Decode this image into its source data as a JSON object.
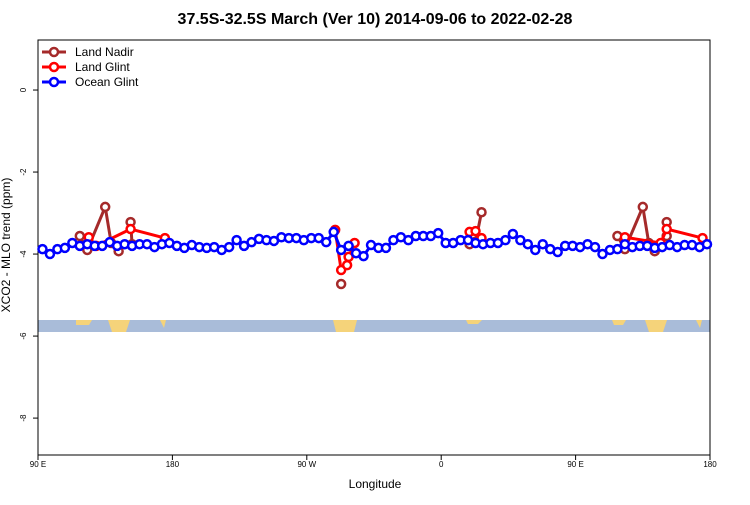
{
  "chart_data": {
    "type": "line",
    "title": "37.5S-32.5S March (Ver 10)   2014-09-06 to 2022-02-28",
    "x_label": "Longitude",
    "y_label": "XCO2 - MLO trend (ppm)",
    "xlim": [
      90,
      540
    ],
    "ylim": [
      -8.9,
      1.22
    ],
    "xticks": [
      {
        "value": 90,
        "label": "90 E"
      },
      180,
      {
        "value": 270,
        "label": "90 W"
      },
      {
        "value": 360,
        "label": "0"
      },
      {
        "value": 450,
        "label": "90 E"
      },
      {
        "value": 540,
        "label": "180"
      }
    ],
    "yticks": [
      0,
      -2,
      -4,
      -6,
      -8
    ],
    "legend": "top-left",
    "series": [
      {
        "name": "Land Nadir",
        "color": "#a52a2a",
        "x": [
          118,
          123,
          135,
          139,
          144,
          null,
          152,
          153,
          null,
          293,
          null,
          379,
          383,
          387,
          null,
          478,
          483,
          495,
          499,
          503,
          null,
          511,
          511
        ],
        "values": [
          -3.56,
          -3.9,
          -2.85,
          -3.73,
          -3.93,
          null,
          -3.22,
          -3.76,
          null,
          -4.73,
          null,
          -3.76,
          -3.7,
          -2.98,
          null,
          -3.56,
          -3.88,
          -2.85,
          -3.73,
          -3.93,
          null,
          -3.22,
          -3.56
        ]
      },
      {
        "name": "Land Glint",
        "color": "#ff0000",
        "x": [
          124,
          129,
          152,
          175,
          null,
          289,
          293,
          297,
          298,
          302,
          null,
          379,
          383,
          387,
          null,
          483,
          507,
          511,
          535
        ],
        "values": [
          -3.59,
          -3.8,
          -3.39,
          -3.61,
          null,
          -3.41,
          -4.39,
          -4.27,
          -4.07,
          -3.73,
          null,
          -3.46,
          -3.44,
          -3.61,
          null,
          -3.59,
          -3.73,
          -3.39,
          -3.61
        ]
      },
      {
        "name": "Ocean Glint",
        "color": "#0000ff",
        "x": [
          93,
          98,
          103,
          108,
          113,
          118,
          123,
          128,
          133,
          138,
          143,
          148,
          153,
          158,
          163,
          168,
          173,
          178,
          183,
          188,
          193,
          198,
          203,
          208,
          213,
          218,
          223,
          228,
          233,
          238,
          243,
          248,
          253,
          258,
          263,
          268,
          273,
          278,
          283,
          288,
          293,
          298,
          303,
          308,
          313,
          318,
          323,
          328,
          333,
          338,
          343,
          348,
          353,
          358,
          363,
          368,
          373,
          378,
          383,
          388,
          393,
          398,
          403,
          408,
          413,
          418,
          423,
          428,
          433,
          438,
          443,
          448,
          453,
          458,
          463,
          468,
          473,
          478,
          483,
          488,
          493,
          498,
          503,
          508,
          513,
          518,
          523,
          528,
          533,
          538
        ],
        "values": [
          -3.88,
          -4.0,
          -3.88,
          -3.85,
          -3.73,
          -3.8,
          -3.76,
          -3.8,
          -3.8,
          -3.71,
          -3.8,
          -3.76,
          -3.8,
          -3.76,
          -3.76,
          -3.83,
          -3.76,
          -3.73,
          -3.8,
          -3.85,
          -3.78,
          -3.83,
          -3.85,
          -3.83,
          -3.9,
          -3.83,
          -3.66,
          -3.8,
          -3.71,
          -3.63,
          -3.66,
          -3.68,
          -3.59,
          -3.61,
          -3.61,
          -3.66,
          -3.61,
          -3.61,
          -3.71,
          -3.46,
          -3.9,
          -3.8,
          -3.98,
          -4.05,
          -3.78,
          -3.85,
          -3.85,
          -3.66,
          -3.59,
          -3.66,
          -3.56,
          -3.56,
          -3.56,
          -3.49,
          -3.73,
          -3.73,
          -3.66,
          -3.66,
          -3.73,
          -3.76,
          -3.73,
          -3.73,
          -3.66,
          -3.51,
          -3.66,
          -3.76,
          -3.9,
          -3.76,
          -3.88,
          -3.95,
          -3.8,
          -3.8,
          -3.83,
          -3.76,
          -3.83,
          -4.0,
          -3.9,
          -3.88,
          -3.76,
          -3.83,
          -3.8,
          -3.8,
          -3.85,
          -3.83,
          -3.78,
          -3.83,
          -3.78,
          -3.78,
          -3.83,
          -3.76
        ]
      }
    ]
  }
}
